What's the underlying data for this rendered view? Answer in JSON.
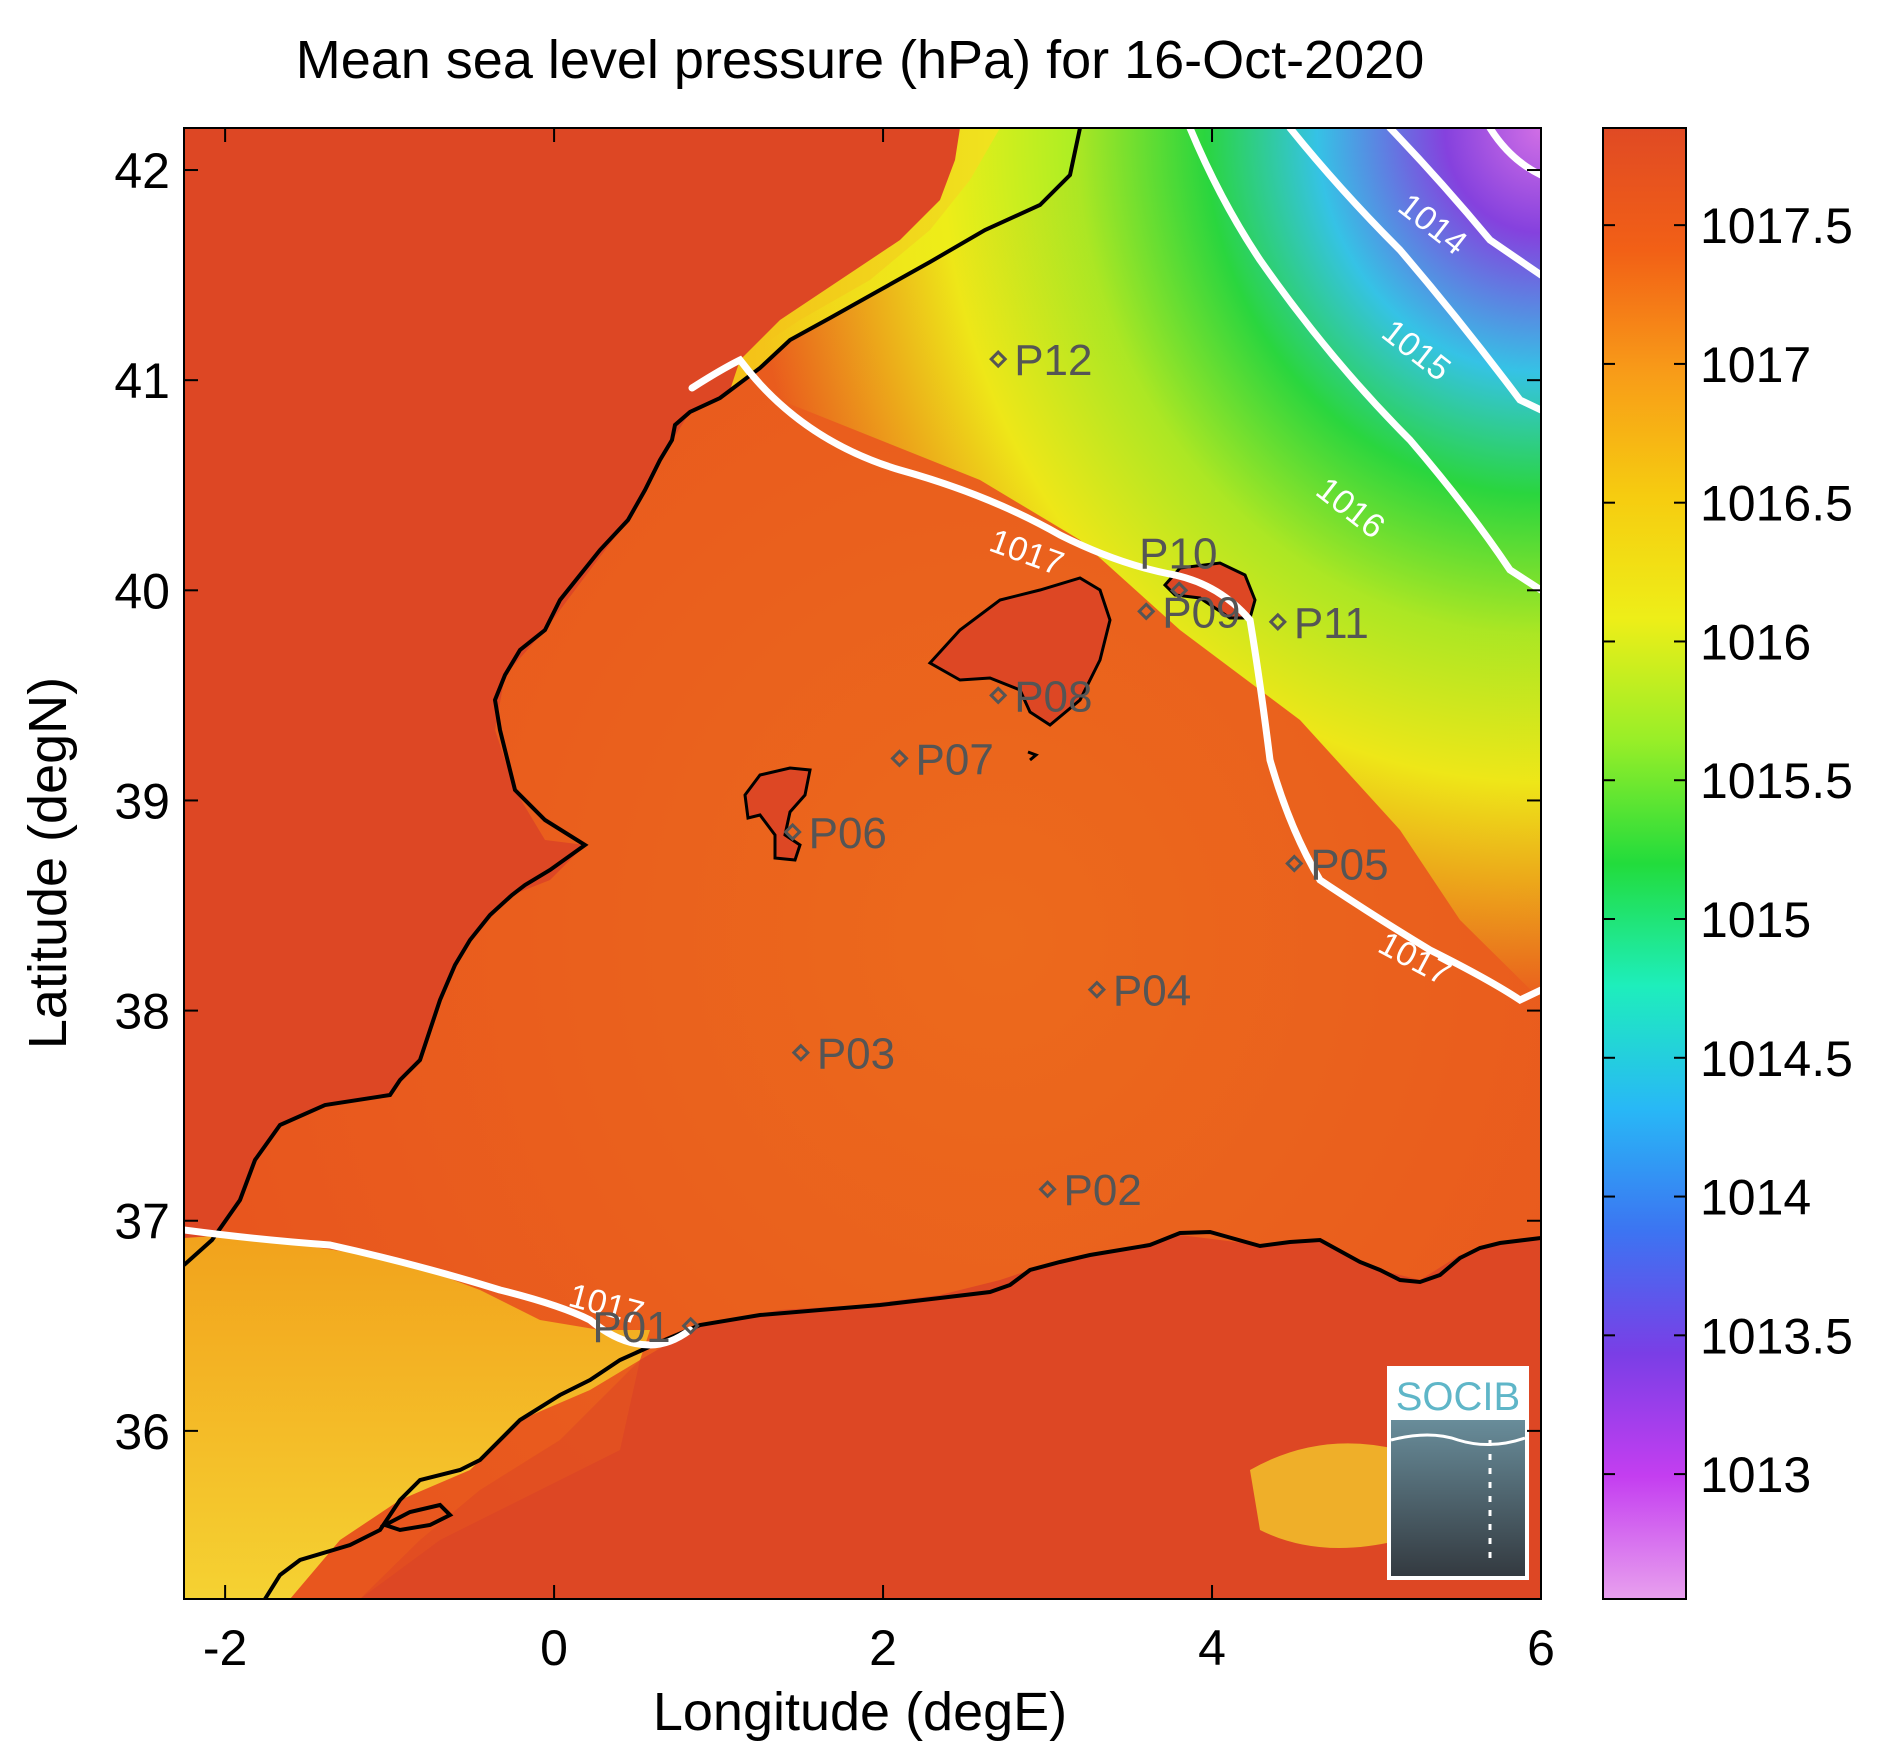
{
  "title": "Mean sea level pressure (hPa) for 16-Oct-2020",
  "x_axis": {
    "label": "Longitude (degE)",
    "range": [
      -2.25,
      6
    ],
    "ticks": [
      {
        "value": -2,
        "label": "-2"
      },
      {
        "value": 0,
        "label": "0"
      },
      {
        "value": 2,
        "label": "2"
      },
      {
        "value": 4,
        "label": "4"
      },
      {
        "value": 6,
        "label": "6"
      }
    ]
  },
  "y_axis": {
    "label": "Latitude (degN)",
    "range": [
      35.2,
      42.2
    ],
    "ticks": [
      {
        "value": 36,
        "label": "36"
      },
      {
        "value": 37,
        "label": "37"
      },
      {
        "value": 38,
        "label": "38"
      },
      {
        "value": 39,
        "label": "39"
      },
      {
        "value": 40,
        "label": "40"
      },
      {
        "value": 41,
        "label": "41"
      },
      {
        "value": 42,
        "label": "42"
      }
    ]
  },
  "colorbar": {
    "range": [
      1012.55,
      1017.85
    ],
    "ticks": [
      {
        "value": 1013,
        "label": "1013"
      },
      {
        "value": 1013.5,
        "label": "1013.5"
      },
      {
        "value": 1014,
        "label": "1014"
      },
      {
        "value": 1014.5,
        "label": "1014.5"
      },
      {
        "value": 1015,
        "label": "1015"
      },
      {
        "value": 1015.5,
        "label": "1015.5"
      },
      {
        "value": 1016,
        "label": "1016"
      },
      {
        "value": 1016.5,
        "label": "1016.5"
      },
      {
        "value": 1017,
        "label": "1017"
      },
      {
        "value": 1017.5,
        "label": "1017.5"
      }
    ],
    "colors": [
      "#e8a0ee",
      "#c43ef0",
      "#7a3ee6",
      "#3c74f2",
      "#28b8f6",
      "#1eeebc",
      "#22dc3c",
      "#98ee28",
      "#eeee18",
      "#f6cc10",
      "#f89c18",
      "#f26016",
      "#e04a24"
    ]
  },
  "colors": {
    "land_high": "#dd4724",
    "sea_high": "#e6501f",
    "plateau": "#f0b820",
    "contour": "#ffffff",
    "coast": "#000000",
    "station": "#555555"
  },
  "contour_labels": [
    {
      "text": "1014",
      "lon": 5.3,
      "lat": 41.7
    },
    {
      "text": "1015",
      "lon": 5.2,
      "lat": 41.1
    },
    {
      "text": "1016",
      "lon": 4.8,
      "lat": 40.35
    },
    {
      "text": "1017",
      "lon": 2.85,
      "lat": 40.13
    },
    {
      "text": "1017",
      "lon": 5.2,
      "lat": 38.2
    },
    {
      "text": "1017",
      "lon": 0.3,
      "lat": 36.55
    }
  ],
  "stations": [
    {
      "id": "P01",
      "lon": 0.83,
      "lat": 36.5
    },
    {
      "id": "P02",
      "lon": 3.0,
      "lat": 37.15
    },
    {
      "id": "P03",
      "lon": 1.5,
      "lat": 37.8
    },
    {
      "id": "P04",
      "lon": 3.3,
      "lat": 38.1
    },
    {
      "id": "P05",
      "lon": 4.5,
      "lat": 38.7
    },
    {
      "id": "P06",
      "lon": 1.45,
      "lat": 38.85
    },
    {
      "id": "P07",
      "lon": 2.1,
      "lat": 39.2
    },
    {
      "id": "P08",
      "lon": 2.7,
      "lat": 39.5
    },
    {
      "id": "P09",
      "lon": 3.6,
      "lat": 39.9
    },
    {
      "id": "P10",
      "lon": 3.8,
      "lat": 40.0
    },
    {
      "id": "P11",
      "lon": 4.4,
      "lat": 39.85
    },
    {
      "id": "P12",
      "lon": 2.7,
      "lat": 41.1
    }
  ],
  "logo": {
    "text": "SOCIB"
  }
}
